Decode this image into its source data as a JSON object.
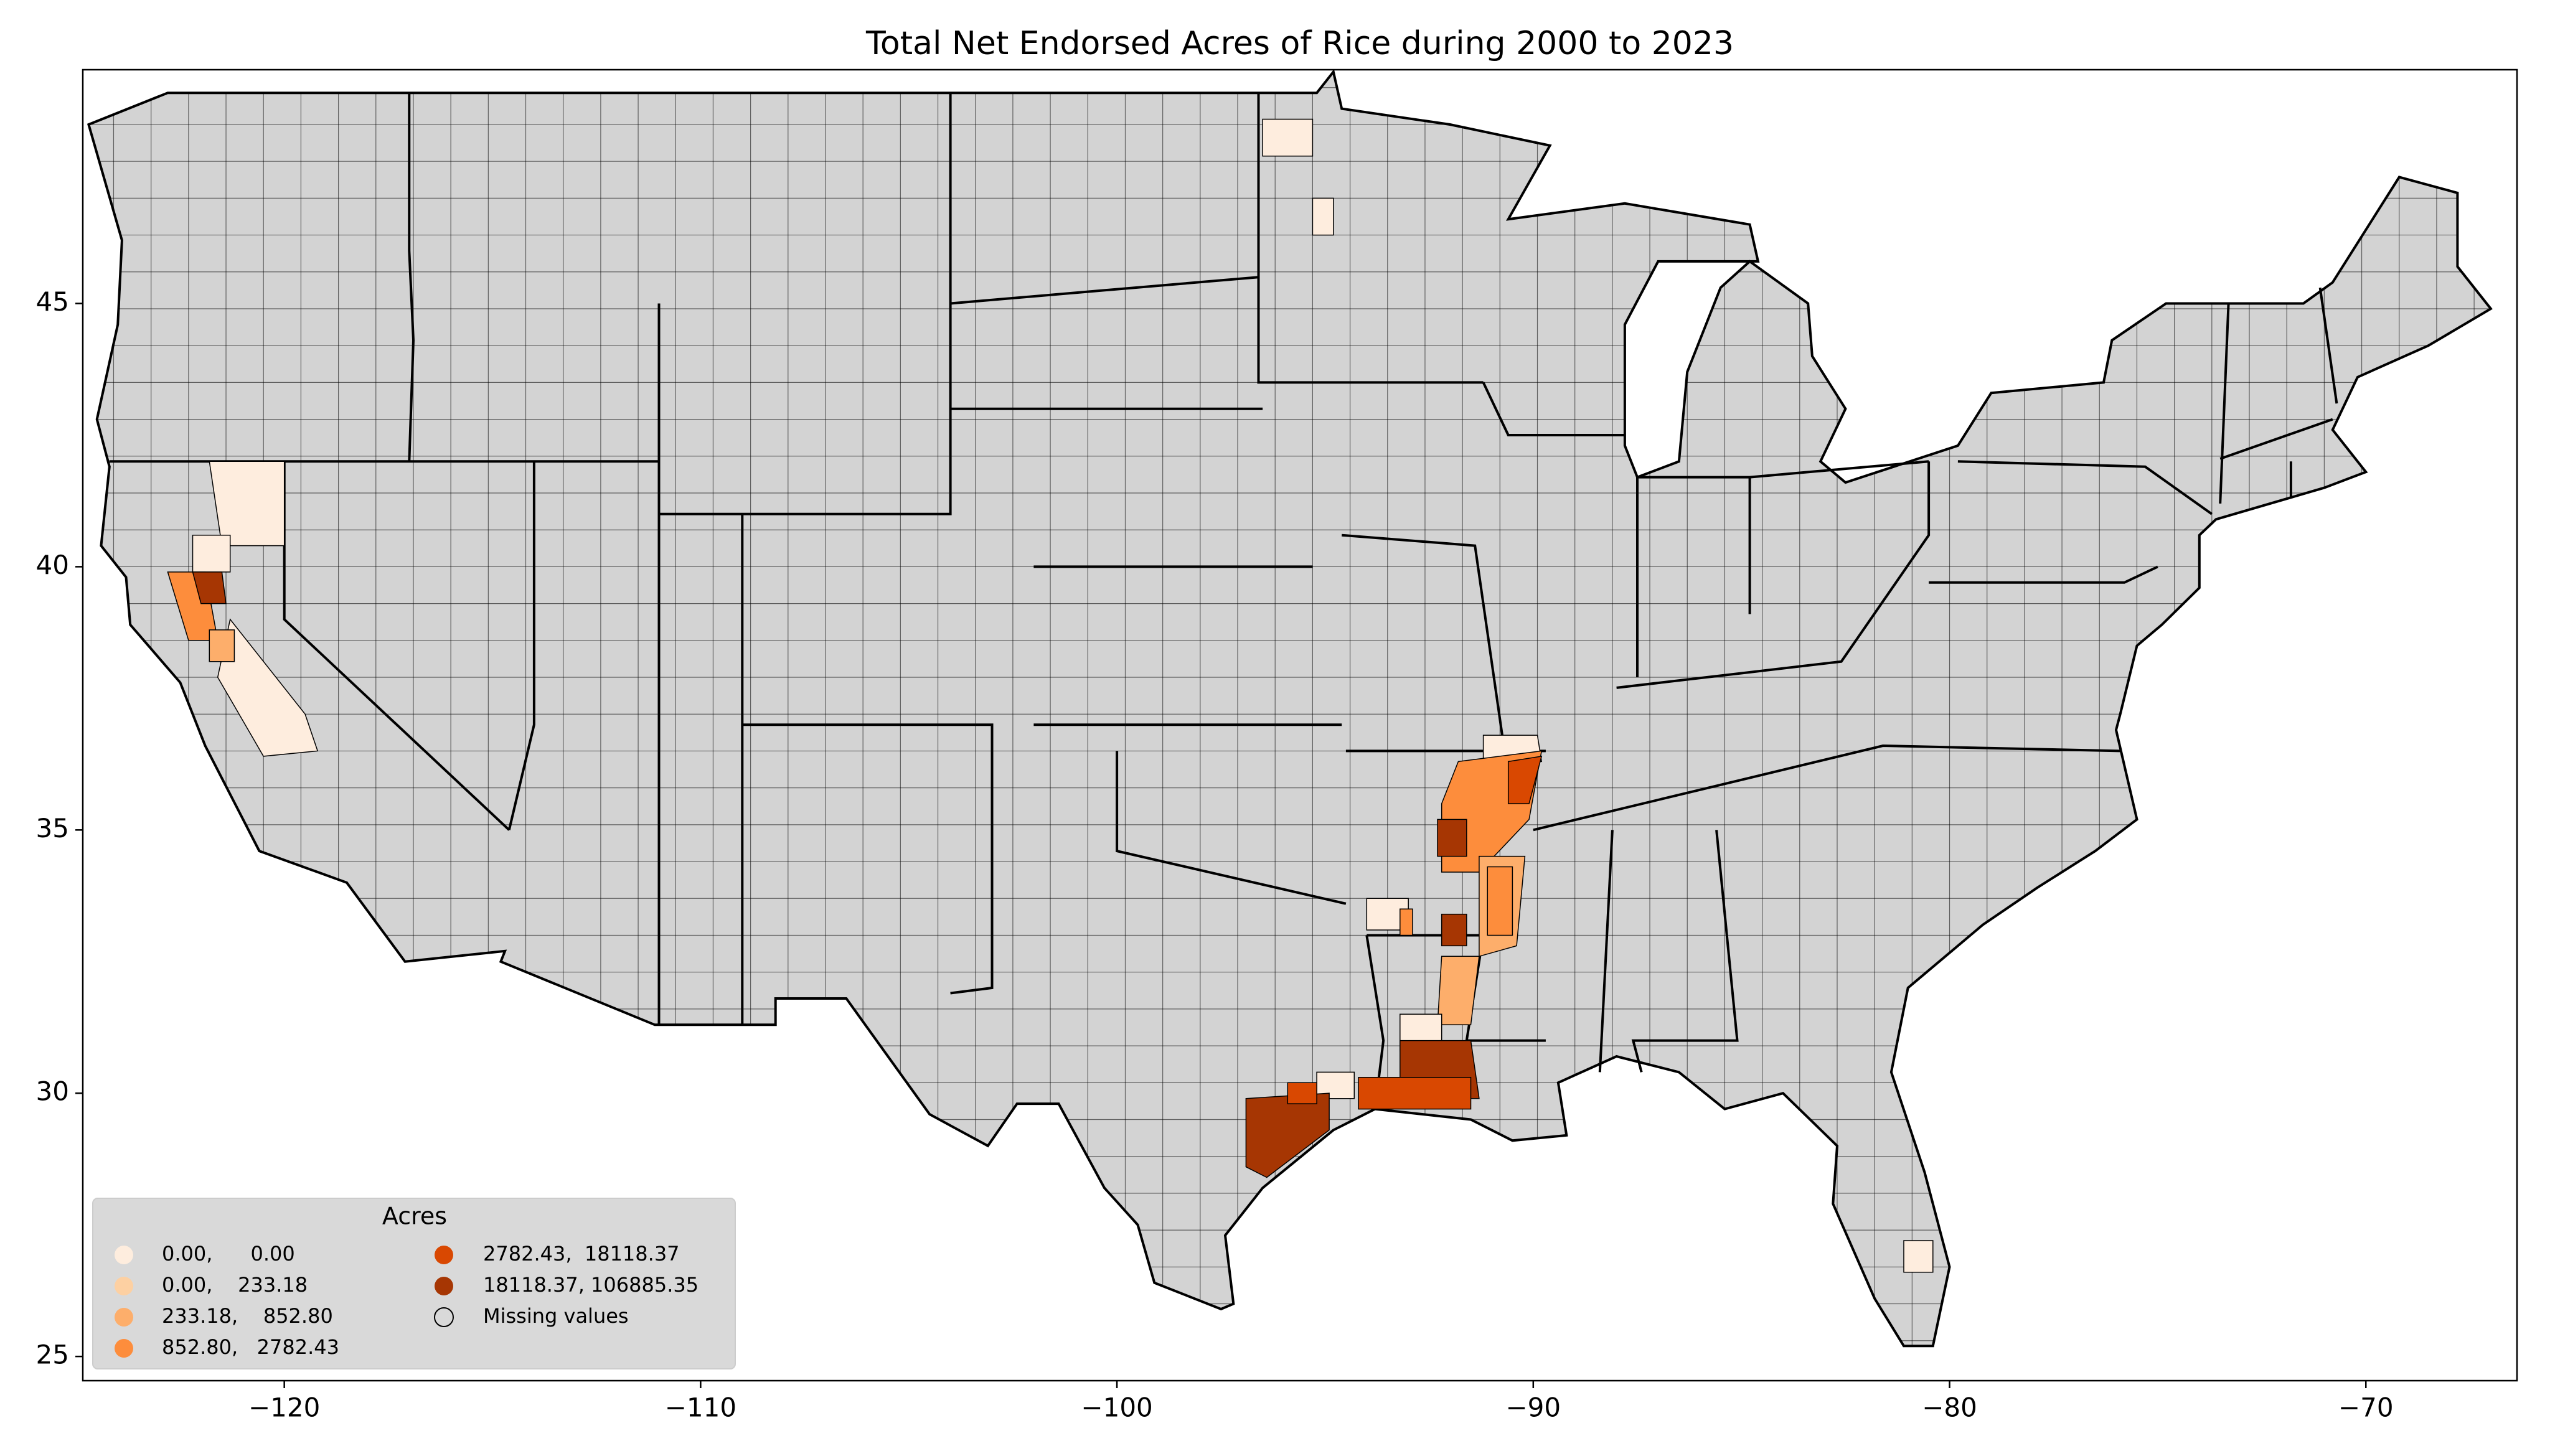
{
  "chart_data": {
    "type": "choropleth",
    "title": "Total Net Endorsed Acres of Rice during 2000 to 2023",
    "xlim": [
      -124.84,
      -66.37
    ],
    "ylim": [
      24.54,
      49.44
    ],
    "xticks": [
      {
        "value": -120,
        "label": "−120"
      },
      {
        "value": -110,
        "label": "−110"
      },
      {
        "value": -100,
        "label": "−100"
      },
      {
        "value": -90,
        "label": "−90"
      },
      {
        "value": -80,
        "label": "−80"
      },
      {
        "value": -70,
        "label": "−70"
      }
    ],
    "yticks": [
      25,
      30,
      35,
      40,
      45
    ],
    "base_color": "#d3d3d3",
    "legend": {
      "title": "Acres",
      "entries": [
        {
          "label": "0.00,      0.00",
          "color": "#feedde"
        },
        {
          "label": "0.00,    233.18",
          "color": "#fdd0a2"
        },
        {
          "label": "233.18,    852.80",
          "color": "#fdae6b"
        },
        {
          "label": "852.80,   2782.43",
          "color": "#fd8d3c"
        },
        {
          "label": "2782.43,  18118.37",
          "color": "#d94801"
        },
        {
          "label": "18118.37, 106885.35",
          "color": "#a63603"
        },
        {
          "label": "Missing values"
        }
      ]
    }
  }
}
